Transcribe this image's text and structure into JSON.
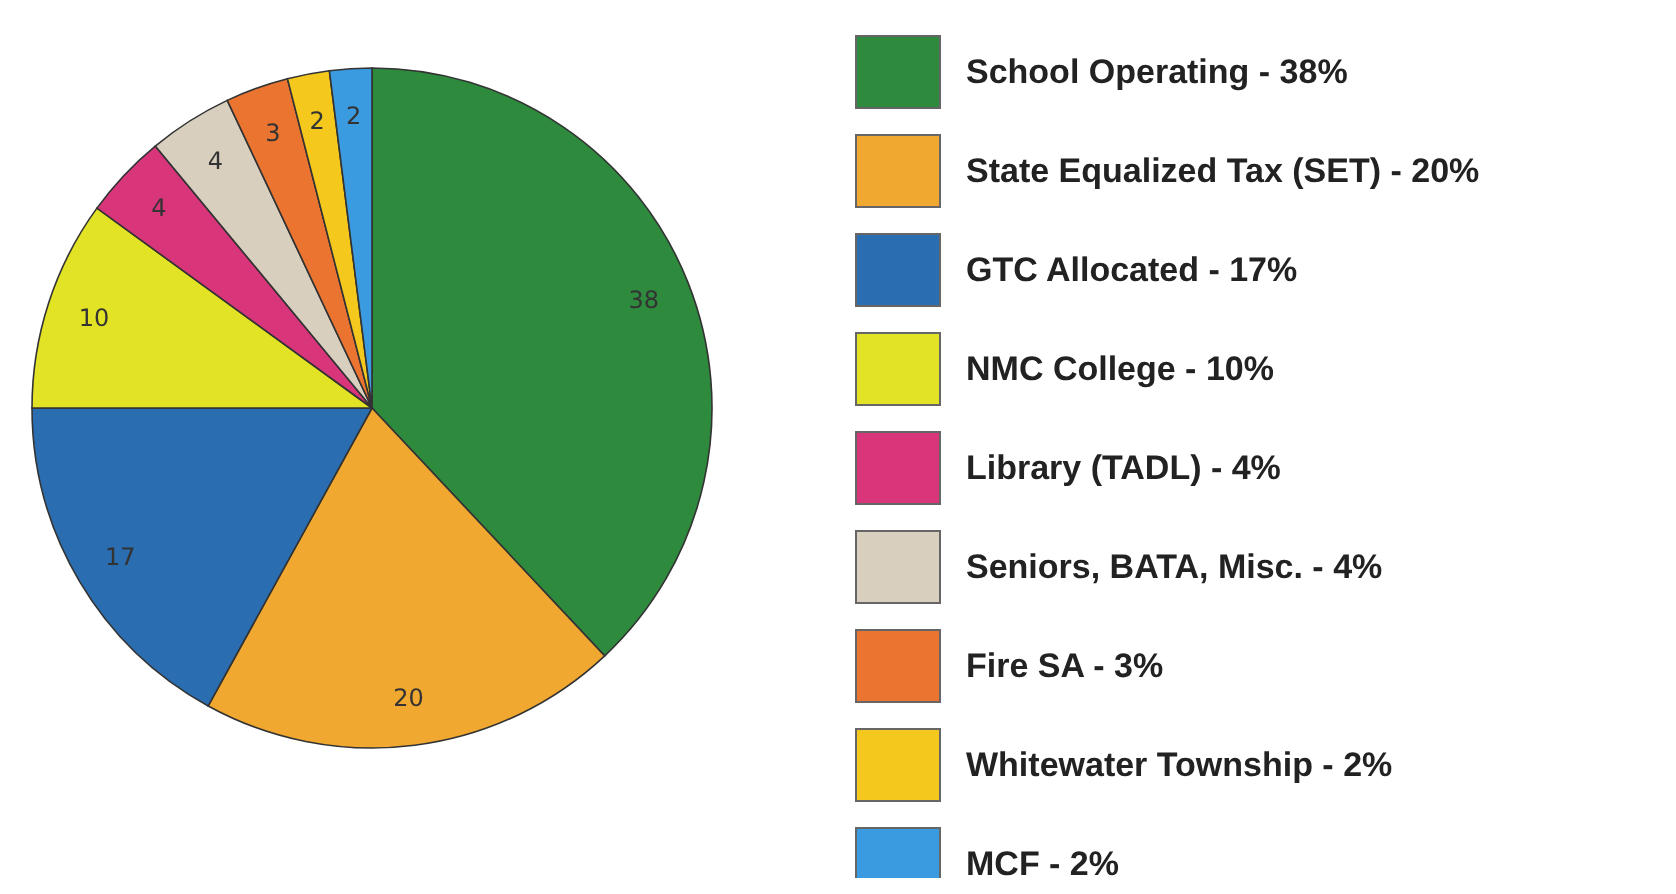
{
  "chart_data": {
    "type": "pie",
    "categories": [
      "School Operating - 38%",
      "State Equalized Tax (SET) - 20%",
      "GTC Allocated - 17%",
      "NMC College - 10%",
      "Library (TADL) - 4%",
      "Seniors, BATA, Misc. - 4%",
      "Fire SA - 3%",
      "Whitewater Township - 2%",
      "MCF - 2%"
    ],
    "values": [
      38,
      20,
      17,
      10,
      4,
      4,
      3,
      2,
      2
    ],
    "colors": [
      "#2e8b3e",
      "#f0a830",
      "#2a6db0",
      "#e2e324",
      "#d9357b",
      "#d9cfbf",
      "#ea7430",
      "#f4c81c",
      "#3b9be0"
    ],
    "data_labels": true,
    "legend": "right"
  }
}
